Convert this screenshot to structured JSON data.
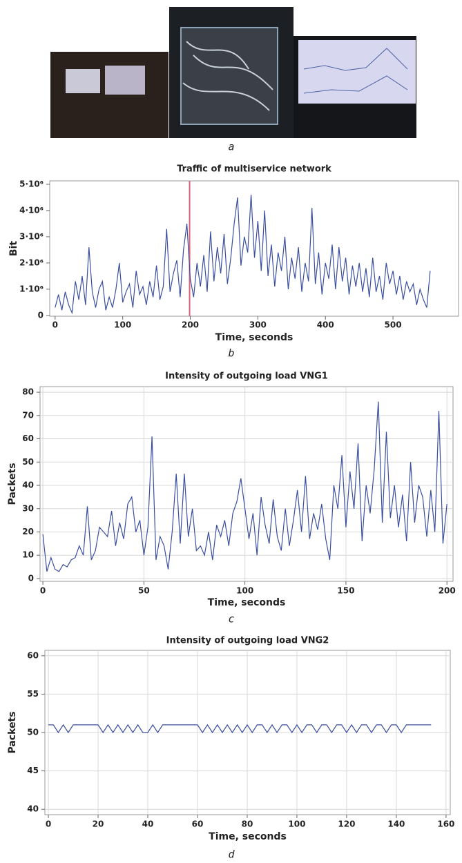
{
  "captions": [
    "a",
    "b",
    "c",
    "d"
  ],
  "chart_data": [
    {
      "type": "line",
      "title": "Traffic of multiservice network",
      "xlabel": "Time, seconds",
      "ylabel": "Bit",
      "grid": false,
      "xlim": [
        -8,
        597
      ],
      "ylim": [
        -30000,
        5130000
      ],
      "xticks": [
        0,
        100,
        200,
        300,
        400,
        500
      ],
      "yticks": [
        0,
        {
          "value": 1000000,
          "label": "1·10⁶"
        },
        {
          "value": 2000000,
          "label": "2·10⁶"
        },
        {
          "value": 3000000,
          "label": "3·10⁶"
        },
        {
          "value": 4000000,
          "label": "4·10⁶"
        },
        {
          "value": 5000000,
          "label": "5·10⁶"
        }
      ],
      "cursor": {
        "x": 199,
        "color": "#e0607a"
      },
      "series": [
        {
          "color": "#3a4ea0",
          "x": [
            0,
            5,
            10,
            15,
            20,
            25,
            30,
            35,
            40,
            45,
            50,
            55,
            60,
            65,
            70,
            75,
            80,
            85,
            90,
            95,
            100,
            105,
            110,
            115,
            120,
            125,
            130,
            135,
            140,
            145,
            150,
            155,
            160,
            165,
            170,
            175,
            180,
            185,
            190,
            195,
            200,
            205,
            210,
            215,
            220,
            225,
            230,
            235,
            240,
            245,
            250,
            255,
            260,
            265,
            270,
            275,
            280,
            285,
            290,
            295,
            300,
            305,
            310,
            315,
            320,
            325,
            330,
            335,
            340,
            345,
            350,
            355,
            360,
            365,
            370,
            375,
            380,
            385,
            390,
            395,
            400,
            405,
            410,
            415,
            420,
            425,
            430,
            435,
            440,
            445,
            450,
            455,
            460,
            465,
            470,
            475,
            480,
            485,
            490,
            495,
            500,
            505,
            510,
            515,
            520,
            525,
            530,
            535,
            540,
            545,
            550,
            555
          ],
          "values": [
            300000,
            800000,
            200000,
            900000,
            400000,
            100000,
            1300000,
            600000,
            1500000,
            400000,
            2600000,
            900000,
            300000,
            1000000,
            1300000,
            200000,
            700000,
            300000,
            1000000,
            2000000,
            500000,
            900000,
            1200000,
            300000,
            1700000,
            800000,
            1100000,
            400000,
            1300000,
            700000,
            1900000,
            600000,
            1100000,
            3300000,
            900000,
            1600000,
            2100000,
            700000,
            2500000,
            3500000,
            1400000,
            700000,
            2000000,
            1100000,
            2300000,
            900000,
            3200000,
            1300000,
            2600000,
            1600000,
            3100000,
            1200000,
            2200000,
            3500000,
            4500000,
            1900000,
            3000000,
            2400000,
            4600000,
            2200000,
            3600000,
            1700000,
            4000000,
            1500000,
            2700000,
            1100000,
            2400000,
            1700000,
            3000000,
            1000000,
            2200000,
            1400000,
            2600000,
            900000,
            2000000,
            1300000,
            4100000,
            1200000,
            2400000,
            800000,
            2000000,
            1400000,
            2700000,
            1000000,
            2600000,
            1300000,
            2200000,
            800000,
            1900000,
            1100000,
            2000000,
            900000,
            1800000,
            700000,
            2200000,
            900000,
            1500000,
            600000,
            2000000,
            1200000,
            1700000,
            800000,
            1500000,
            600000,
            1300000,
            900000,
            1200000,
            400000,
            1000000,
            600000,
            300000,
            1700000
          ]
        }
      ]
    },
    {
      "type": "line",
      "title": "Intensity of outgoing load VNG1",
      "xlabel": "Time, seconds",
      "ylabel": "Packets",
      "grid": true,
      "xlim": [
        -1.4,
        203
      ],
      "ylim": [
        -1.2,
        82.4
      ],
      "xticks": [
        0,
        50,
        100,
        150,
        200
      ],
      "yticks": [
        0,
        10,
        20,
        30,
        40,
        50,
        60,
        70,
        80
      ],
      "series": [
        {
          "color": "#3a4ea0",
          "x": [
            0,
            2,
            4,
            6,
            8,
            10,
            12,
            14,
            16,
            18,
            20,
            22,
            24,
            26,
            28,
            30,
            32,
            34,
            36,
            38,
            40,
            42,
            44,
            46,
            48,
            50,
            52,
            54,
            56,
            58,
            60,
            62,
            64,
            66,
            68,
            70,
            72,
            74,
            76,
            78,
            80,
            82,
            84,
            86,
            88,
            90,
            92,
            94,
            96,
            98,
            100,
            102,
            104,
            106,
            108,
            110,
            112,
            114,
            116,
            118,
            120,
            122,
            124,
            126,
            128,
            130,
            132,
            134,
            136,
            138,
            140,
            142,
            144,
            146,
            148,
            150,
            152,
            154,
            156,
            158,
            160,
            162,
            164,
            166,
            168,
            170,
            172,
            174,
            176,
            178,
            180,
            182,
            184,
            186,
            188,
            190,
            192,
            194,
            196,
            198,
            200
          ],
          "values": [
            19,
            3,
            9,
            4,
            3,
            6,
            5,
            8,
            9,
            14,
            10,
            31,
            8,
            12,
            22,
            20,
            18,
            29,
            14,
            24,
            17,
            32,
            35,
            20,
            25,
            10,
            22,
            61,
            8,
            18,
            14,
            4,
            20,
            45,
            15,
            45,
            18,
            30,
            12,
            14,
            10,
            20,
            8,
            23,
            18,
            25,
            14,
            28,
            33,
            43,
            30,
            17,
            28,
            10,
            35,
            23,
            15,
            34,
            18,
            12,
            30,
            14,
            25,
            38,
            20,
            44,
            17,
            28,
            21,
            32,
            17,
            8,
            40,
            30,
            53,
            22,
            46,
            30,
            58,
            16,
            40,
            28,
            47,
            76,
            24,
            63,
            26,
            40,
            22,
            36,
            16,
            50,
            24,
            40,
            35,
            18,
            38,
            20,
            72,
            15,
            32
          ]
        }
      ]
    },
    {
      "type": "line",
      "title": "Intensity of outgoing load VNG2",
      "xlabel": "Time, seconds",
      "ylabel": "Packets",
      "grid": true,
      "xlim": [
        -1.4,
        161.7
      ],
      "ylim": [
        39.3,
        60.7
      ],
      "xticks": [
        0,
        20,
        40,
        60,
        80,
        100,
        120,
        140,
        160
      ],
      "yticks": [
        40,
        45,
        50,
        55,
        60
      ],
      "series": [
        {
          "color": "#3a4ea0",
          "x": [
            0,
            2,
            4,
            6,
            8,
            10,
            12,
            14,
            16,
            18,
            20,
            22,
            24,
            26,
            28,
            30,
            32,
            34,
            36,
            38,
            40,
            42,
            44,
            46,
            48,
            50,
            52,
            54,
            56,
            58,
            60,
            62,
            64,
            66,
            68,
            70,
            72,
            74,
            76,
            78,
            80,
            82,
            84,
            86,
            88,
            90,
            92,
            94,
            96,
            98,
            100,
            102,
            104,
            106,
            108,
            110,
            112,
            114,
            116,
            118,
            120,
            122,
            124,
            126,
            128,
            130,
            132,
            134,
            136,
            138,
            140,
            142,
            144,
            146,
            148,
            150,
            152,
            154
          ],
          "values": [
            51,
            51,
            50,
            51,
            50,
            51,
            51,
            51,
            51,
            51,
            51,
            50,
            51,
            50,
            51,
            50,
            51,
            50,
            51,
            50,
            50,
            51,
            50,
            51,
            51,
            51,
            51,
            51,
            51,
            51,
            51,
            50,
            51,
            50,
            51,
            50,
            51,
            50,
            51,
            50,
            51,
            50,
            51,
            51,
            50,
            51,
            50,
            51,
            51,
            50,
            51,
            50,
            51,
            51,
            50,
            51,
            51,
            50,
            51,
            51,
            50,
            51,
            50,
            51,
            51,
            50,
            51,
            51,
            50,
            51,
            51,
            50,
            51,
            51,
            51,
            51,
            51,
            51
          ]
        }
      ]
    }
  ]
}
